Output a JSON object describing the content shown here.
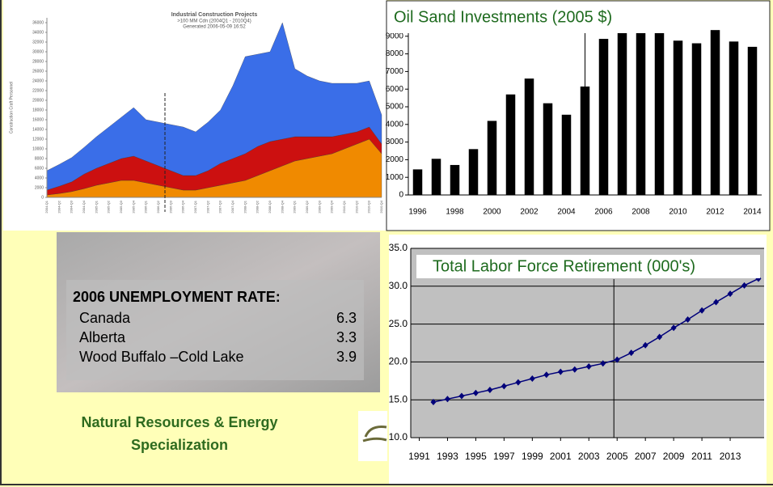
{
  "chart_data": [
    {
      "type": "area",
      "title": "Industrial Construction Projects",
      "subtitle": [
        ">100 MM Cdn (2004Q1 - 2010Q4)",
        "Generated 2006-05-09 16:52"
      ],
      "y_label": "Construction Craft Personnel",
      "categories": [
        "2004-Q1",
        "2004-Q2",
        "2004-Q3",
        "2004-Q4",
        "2005-Q1",
        "2005-Q2",
        "2005-Q3",
        "2005-Q4",
        "2006-Q1",
        "2006-Q2",
        "2006-Q3",
        "2006-Q4",
        "2007-Q1",
        "2007-Q2",
        "2007-Q3",
        "2007-Q4",
        "2008-Q1",
        "2008-Q2",
        "2008-Q3",
        "2008-Q4",
        "2009-Q1",
        "2009-Q2",
        "2009-Q3",
        "2009-Q4",
        "2010-Q1",
        "2010-Q2",
        "2010-Q3",
        "2010-Q4"
      ],
      "series": [
        {
          "color": "#f08a00",
          "values": [
            500,
            800,
            1200,
            1800,
            2500,
            3000,
            3500,
            3500,
            3000,
            2500,
            2000,
            1500,
            1500,
            2000,
            2500,
            3000,
            3500,
            4500,
            5500,
            6500,
            7500,
            8000,
            8500,
            9000,
            10000,
            11000,
            12000,
            9000
          ]
        },
        {
          "color": "#cc1010",
          "values": [
            1000,
            1500,
            2000,
            3000,
            3500,
            4000,
            4500,
            5000,
            4500,
            4000,
            3500,
            3000,
            3000,
            3500,
            4500,
            5000,
            5500,
            6000,
            6000,
            5500,
            5000,
            4500,
            4000,
            3500,
            3000,
            2500,
            2500,
            2000
          ]
        },
        {
          "color": "#3a6ee8",
          "values": [
            4000,
            4500,
            5000,
            5500,
            6500,
            7500,
            8500,
            10000,
            8500,
            9000,
            9500,
            10000,
            9000,
            10000,
            11000,
            15000,
            20000,
            19000,
            18500,
            24000,
            14000,
            12500,
            11500,
            11000,
            10500,
            10000,
            9500,
            6000
          ]
        }
      ],
      "ylim": [
        0,
        37000
      ],
      "yticks": [
        0,
        2000,
        4000,
        6000,
        8000,
        10000,
        12000,
        14000,
        16000,
        18000,
        20000,
        22000,
        24000,
        26000,
        28000,
        30000,
        32000,
        34000,
        36000
      ]
    },
    {
      "type": "bar",
      "title": "Oil Sand Investments (2005 $)",
      "categories": [
        "1996",
        null,
        "1998",
        null,
        "2000",
        null,
        "2002",
        null,
        "2004",
        null,
        "2006",
        null,
        "2008",
        null,
        "2010",
        null,
        "2012",
        null,
        "2014"
      ],
      "values": [
        1450,
        2050,
        1700,
        2600,
        4200,
        5700,
        6600,
        5200,
        4550,
        6150,
        8850,
        9250,
        9350,
        9350,
        8750,
        8600,
        9350,
        8700,
        8400
      ],
      "color": "#000000",
      "ylim": [
        0,
        10000
      ],
      "yticks": [
        0,
        1000,
        2000,
        3000,
        4000,
        5000,
        6000,
        7000,
        8000,
        9000
      ]
    },
    {
      "type": "line",
      "title": "Total Labor Force Retirement (000's)",
      "x": [
        1992,
        1993,
        1994,
        1995,
        1996,
        1997,
        1998,
        1999,
        2000,
        2001,
        2002,
        2003,
        2004,
        2005,
        2006,
        2007,
        2008,
        2009,
        2010,
        2011,
        2012,
        2013,
        2014,
        2015
      ],
      "values": [
        14.7,
        15.1,
        15.5,
        15.9,
        16.3,
        16.8,
        17.3,
        17.8,
        18.3,
        18.7,
        19.0,
        19.4,
        19.8,
        20.3,
        21.2,
        22.2,
        23.3,
        24.5,
        25.6,
        26.8,
        27.9,
        29.0,
        30.1,
        31.0
      ],
      "color": "#00007a",
      "xlim": [
        1990.4,
        2015.4
      ],
      "xticks": [
        1991,
        1993,
        1995,
        1997,
        1999,
        2001,
        2003,
        2005,
        2007,
        2009,
        2011,
        2013
      ],
      "ylim": [
        10,
        35
      ],
      "yticks": [
        {
          "value": 10,
          "label": "10.0"
        },
        {
          "value": 15,
          "label": "15.0"
        },
        {
          "value": 20,
          "label": "20.0"
        },
        {
          "value": 25,
          "label": "25.0"
        },
        {
          "value": 30,
          "label": "30.0"
        },
        {
          "value": 35,
          "label": "35.0"
        }
      ],
      "grid": true,
      "plot_background": "#c0c0c0"
    }
  ],
  "unemployment": {
    "title": "2006 UNEMPLOYMENT RATE:",
    "rows": [
      [
        "Canada",
        6.3
      ],
      [
        "Alberta",
        3.3
      ],
      [
        "Wood Buffalo –Cold Lake",
        3.9
      ]
    ]
  },
  "footer": [
    "Natural Resources & Energy",
    "Specialization"
  ]
}
